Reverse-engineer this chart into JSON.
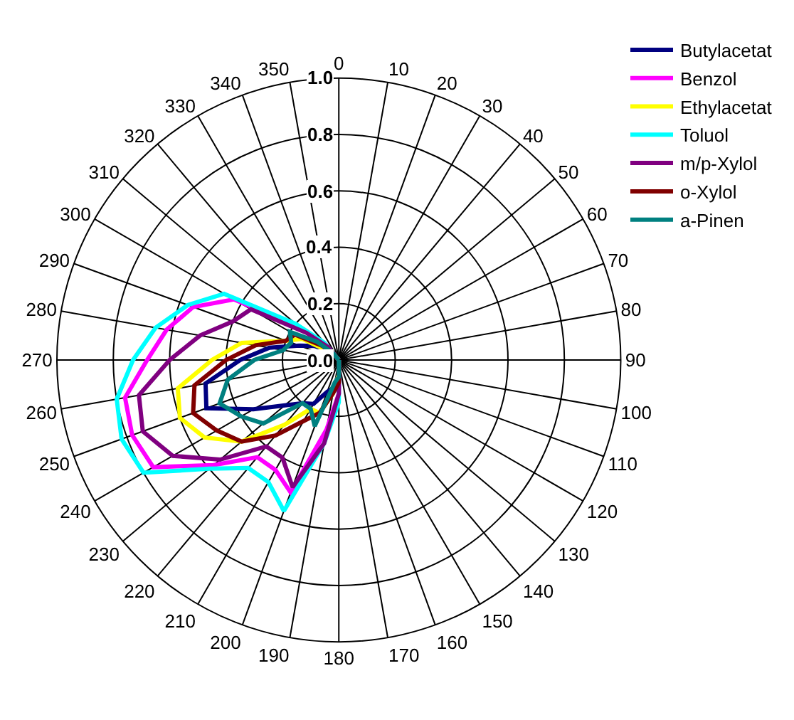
{
  "chart_data": {
    "type": "radar",
    "categories": [
      "0",
      "10",
      "20",
      "30",
      "40",
      "50",
      "60",
      "70",
      "80",
      "90",
      "100",
      "110",
      "120",
      "130",
      "140",
      "150",
      "160",
      "170",
      "180",
      "190",
      "200",
      "210",
      "220",
      "230",
      "240",
      "250",
      "260",
      "270",
      "280",
      "290",
      "300",
      "310",
      "320",
      "330",
      "340",
      "350"
    ],
    "ylim": [
      0,
      1.0
    ],
    "yticks": [
      {
        "value": 0,
        "label": "0.0"
      },
      {
        "value": 0.2,
        "label": "0.2"
      },
      {
        "value": 0.4,
        "label": "0.4"
      },
      {
        "value": 0.6,
        "label": "0.6"
      },
      {
        "value": 0.8,
        "label": "0.8"
      },
      {
        "value": 1.0,
        "label": "1.0"
      }
    ],
    "grid": true,
    "legend": "top right",
    "series": [
      {
        "name": "Butylacetat",
        "color": "#000080",
        "values": [
          0,
          0,
          0,
          0,
          0,
          0,
          0,
          0,
          0,
          0,
          0,
          0,
          0,
          0,
          0,
          0,
          0,
          0,
          0.05,
          0.1,
          0.12,
          0.18,
          0.2,
          0.25,
          0.35,
          0.5,
          0.48,
          0.35,
          0.25,
          0.15,
          0.1,
          0.05,
          0.02,
          0,
          0,
          0
        ]
      },
      {
        "name": "Benzol",
        "color": "#ff00ff",
        "values": [
          0,
          0,
          0,
          0,
          0,
          0,
          0,
          0,
          0,
          0,
          0,
          0,
          0,
          0,
          0,
          0,
          0,
          0,
          0.12,
          0.25,
          0.5,
          0.45,
          0.45,
          0.58,
          0.76,
          0.78,
          0.77,
          0.68,
          0.62,
          0.55,
          0.43,
          0.18,
          0.07,
          0,
          0,
          0
        ]
      },
      {
        "name": "Ethylacetat",
        "color": "#ffff00",
        "values": [
          0,
          0,
          0,
          0,
          0,
          0,
          0,
          0,
          0,
          0,
          0,
          0,
          0,
          0,
          0,
          0,
          0,
          0,
          0.05,
          0.12,
          0.2,
          0.2,
          0.3,
          0.45,
          0.55,
          0.6,
          0.58,
          0.45,
          0.35,
          0.2,
          0.15,
          0.05,
          0.02,
          0,
          0,
          0
        ]
      },
      {
        "name": "Toluol",
        "color": "#00ffff",
        "values": [
          0,
          0,
          0,
          0,
          0,
          0,
          0,
          0,
          0,
          0,
          0,
          0,
          0,
          0,
          0,
          0,
          0,
          0,
          0.15,
          0.3,
          0.57,
          0.5,
          0.5,
          0.6,
          0.8,
          0.82,
          0.8,
          0.73,
          0.66,
          0.57,
          0.47,
          0.2,
          0.08,
          0,
          0,
          0
        ]
      },
      {
        "name": "m/p-Xylol",
        "color": "#800080",
        "values": [
          0,
          0,
          0,
          0,
          0,
          0,
          0,
          0,
          0,
          0,
          0,
          0,
          0,
          0,
          0,
          0,
          0,
          0,
          0.12,
          0.3,
          0.48,
          0.4,
          0.4,
          0.55,
          0.68,
          0.74,
          0.72,
          0.6,
          0.5,
          0.4,
          0.36,
          0.15,
          0.06,
          0,
          0,
          0
        ]
      },
      {
        "name": "o-Xylol",
        "color": "#800000",
        "values": [
          0,
          0,
          0,
          0,
          0,
          0,
          0,
          0,
          0,
          0,
          0,
          0,
          0,
          0,
          0,
          0,
          0,
          0,
          0.08,
          0.12,
          0.2,
          0.25,
          0.35,
          0.45,
          0.5,
          0.55,
          0.52,
          0.4,
          0.3,
          0.2,
          0.18,
          0.08,
          0.03,
          0,
          0,
          0
        ]
      },
      {
        "name": "a-Pinen",
        "color": "#008080",
        "values": [
          0,
          0,
          0,
          0,
          0,
          0,
          0,
          0,
          0,
          0,
          0,
          0,
          0,
          0,
          0,
          0,
          0,
          0,
          0.06,
          0.08,
          0.25,
          0.2,
          0.2,
          0.35,
          0.4,
          0.45,
          0.4,
          0.3,
          0.2,
          0.18,
          0.2,
          0.1,
          0.03,
          0,
          0,
          0
        ]
      }
    ]
  }
}
